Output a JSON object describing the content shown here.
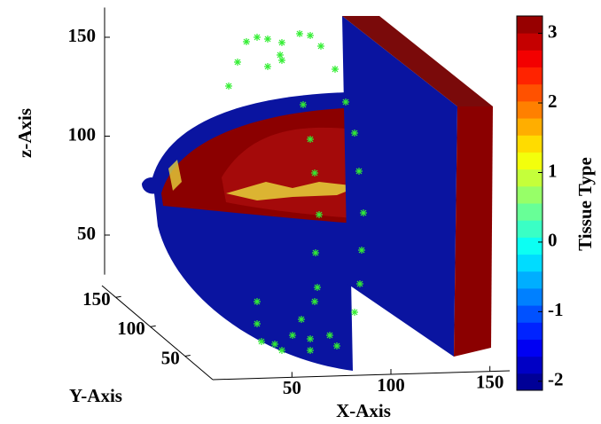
{
  "chart_data": {
    "type": "volume3d",
    "zlabel": "z-Axis",
    "ylabel": "Y-Axis",
    "xlabel": "X-Axis",
    "colorbar_label": "Tissue Type",
    "xlim": [
      10,
      160
    ],
    "xticks": [
      50,
      100,
      150
    ],
    "ylim": [
      10,
      170
    ],
    "yticks": [
      50,
      100,
      150
    ],
    "zlim": [
      30,
      165
    ],
    "zticks": [
      50,
      100,
      150
    ],
    "clim": [
      -2.13,
      3.25
    ],
    "cticks": [
      -2,
      -1,
      0,
      1,
      2,
      3
    ],
    "colormap": "jet",
    "marker_color": "#33ee33"
  }
}
